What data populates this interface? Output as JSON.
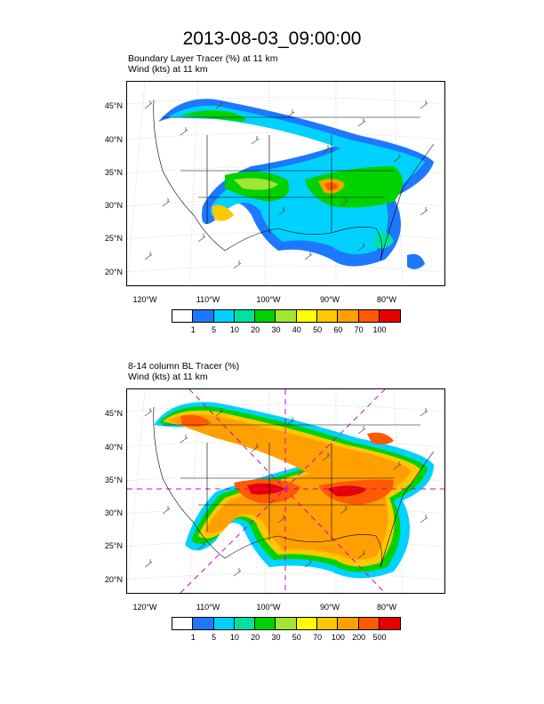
{
  "main_title": "2013-08-03_09:00:00",
  "panels": [
    {
      "title_line1": "Boundary Layer Tracer   (%)     at   11 km",
      "title_line2": "Wind    (kts)     at   11 km",
      "lat_labels": [
        "45°N",
        "40°N",
        "35°N",
        "30°N",
        "25°N",
        "20°N"
      ],
      "lon_labels": [
        "120°W",
        "110°W",
        "100°W",
        "90°W",
        "80°W"
      ],
      "colorbar_labels": [
        "1",
        "5",
        "10",
        "20",
        "30",
        "40",
        "50",
        "60",
        "70",
        "100"
      ],
      "colorbar_colors": [
        "#ffffff",
        "#1e78ff",
        "#00d2ff",
        "#00e1a0",
        "#00d200",
        "#a0e632",
        "#ffff00",
        "#ffc800",
        "#ffa000",
        "#ff5a00",
        "#e60000"
      ]
    },
    {
      "title_line1": "8-14 column BL Tracer    (%)",
      "title_line2": "Wind    (kts)     at   11 km",
      "lat_labels": [
        "45°N",
        "40°N",
        "35°N",
        "30°N",
        "25°N",
        "20°N"
      ],
      "lon_labels": [
        "120°W",
        "110°W",
        "100°W",
        "90°W",
        "80°W"
      ],
      "colorbar_labels": [
        "1",
        "5",
        "10",
        "20",
        "30",
        "50",
        "70",
        "100",
        "200",
        "500"
      ],
      "colorbar_colors": [
        "#ffffff",
        "#1e78ff",
        "#00d2ff",
        "#00e1a0",
        "#00d200",
        "#a0e632",
        "#ffff00",
        "#ffc800",
        "#ffa000",
        "#ff5a00",
        "#e60000"
      ]
    }
  ]
}
